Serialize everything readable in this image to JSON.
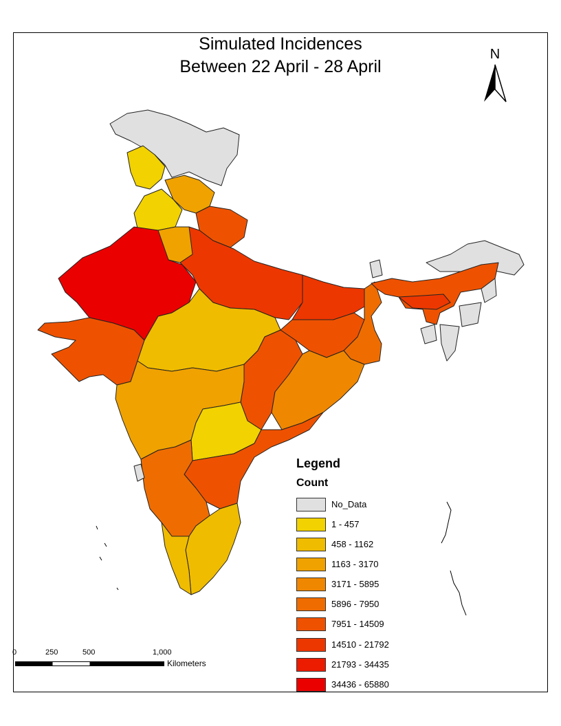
{
  "title": {
    "line1": "Simulated Incidences",
    "line2": "Between 22 April - 28 April"
  },
  "north_arrow": {
    "label": "N"
  },
  "legend": {
    "title": "Legend",
    "subtitle": "Count",
    "items": [
      {
        "label": "No_Data",
        "color": "#e0e0e0"
      },
      {
        "label": "1 - 457",
        "color": "#f2d200"
      },
      {
        "label": "458 - 1162",
        "color": "#f0bc00"
      },
      {
        "label": "1163 - 3170",
        "color": "#f0a200"
      },
      {
        "label": "3171 - 5895",
        "color": "#f08700"
      },
      {
        "label": "5896 - 7950",
        "color": "#ef6d00"
      },
      {
        "label": "7951 - 14509",
        "color": "#ee5200"
      },
      {
        "label": "14510 - 21792",
        "color": "#ed3700"
      },
      {
        "label": "21793 - 34435",
        "color": "#ec1c00"
      },
      {
        "label": "34436 - 65880",
        "color": "#eb0000"
      }
    ]
  },
  "scale": {
    "ticks": [
      "0",
      "250",
      "500",
      "1,000"
    ],
    "unit": "Kilometers"
  }
}
